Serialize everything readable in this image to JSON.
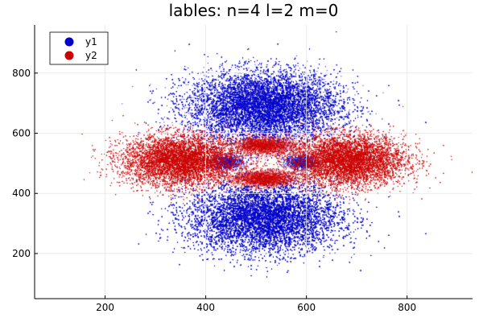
{
  "chart_data": {
    "type": "scatter",
    "title": "lables: n=4 l=2 m=0",
    "xlabel": "",
    "ylabel": "",
    "xlim": [
      60,
      930
    ],
    "ylim": [
      50,
      960
    ],
    "x_ticks": [
      200,
      400,
      600,
      800
    ],
    "y_ticks": [
      200,
      400,
      600,
      800
    ],
    "grid": true,
    "legend_position": "top-left",
    "series": [
      {
        "name": "y1",
        "color": "#0000cc",
        "clusters": [
          {
            "cx": 515,
            "cy": 690,
            "sx": 75,
            "sy": 58,
            "n": 26000
          },
          {
            "cx": 515,
            "cy": 320,
            "sx": 75,
            "sy": 58,
            "n": 26000
          },
          {
            "cx": 440,
            "cy": 505,
            "sx": 16,
            "sy": 12,
            "n": 900
          },
          {
            "cx": 590,
            "cy": 505,
            "sx": 16,
            "sy": 12,
            "n": 900
          }
        ]
      },
      {
        "name": "y2",
        "color": "#cc0000",
        "clusters": [
          {
            "cx": 350,
            "cy": 510,
            "sx": 58,
            "sy": 42,
            "n": 14000
          },
          {
            "cx": 680,
            "cy": 510,
            "sx": 58,
            "sy": 42,
            "n": 14000
          },
          {
            "cx": 515,
            "cy": 560,
            "sx": 30,
            "sy": 14,
            "n": 2200
          },
          {
            "cx": 515,
            "cy": 450,
            "sx": 30,
            "sy": 14,
            "n": 2200
          }
        ]
      }
    ]
  }
}
